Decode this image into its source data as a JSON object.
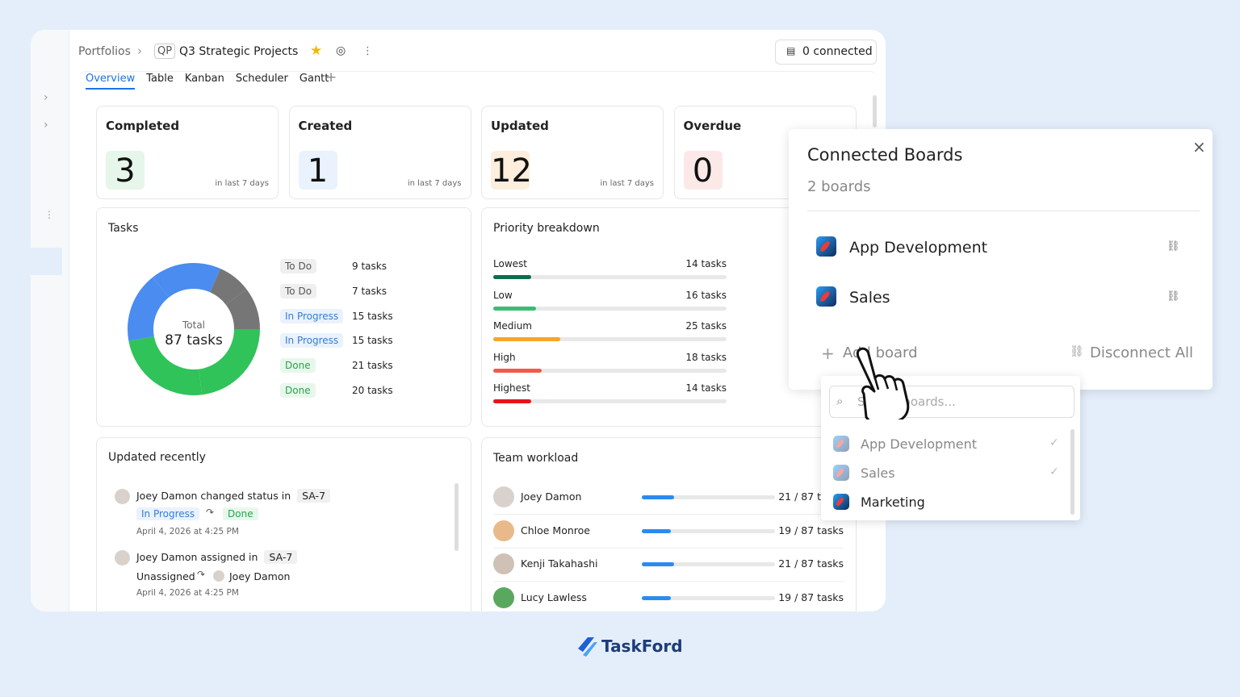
{
  "breadcrumb": {
    "root": "Portfolios",
    "badge": "QP",
    "project": "Q3 Strategic Projects"
  },
  "connected_button": "0 connected",
  "tabs": [
    "Overview",
    "Table",
    "Kanban",
    "Scheduler",
    "Gantt"
  ],
  "stats": [
    {
      "title": "Completed",
      "value": 3,
      "note": "in last 7 days"
    },
    {
      "title": "Created",
      "value": 1,
      "note": "in last 7 days"
    },
    {
      "title": "Updated",
      "value": 12,
      "note": "in last 7 days"
    },
    {
      "title": "Overdue",
      "value": 0
    }
  ],
  "tasks": {
    "title": "Tasks",
    "total_label": "Total",
    "total": "87 tasks",
    "statuses": [
      "To Do",
      "To Do",
      "In Progress",
      "In Progress",
      "Done",
      "Done"
    ],
    "values": [
      9,
      7,
      15,
      15,
      21,
      20
    ],
    "value_labels": [
      "9 tasks",
      "7 tasks",
      "15 tasks",
      "15 tasks",
      "21 tasks",
      "20 tasks"
    ],
    "colors": [
      "#767676",
      "#767676",
      "#4a8cf0",
      "#4a8cf0",
      "#2fc35a",
      "#2fc35a"
    ]
  },
  "priority": {
    "title": "Priority breakdown",
    "categories": [
      "Lowest",
      "Low",
      "Medium",
      "High",
      "Highest"
    ],
    "values": [
      14,
      16,
      25,
      18,
      14
    ],
    "value_labels": [
      "14 tasks",
      "16 tasks",
      "25 tasks",
      "18 tasks",
      "14 tasks"
    ],
    "colors": [
      "#0b6e4f",
      "#3dba74",
      "#f5a623",
      "#f15a4a",
      "#e8141b"
    ],
    "xlim": [
      0,
      87
    ]
  },
  "updated": {
    "title": "Updated recently",
    "entries": [
      {
        "user": "Joey Damon",
        "action": "changed status in",
        "ref": "SA-7",
        "from": "In Progress",
        "to": "Done",
        "time": "April 4, 2026 at 4:25 PM"
      },
      {
        "user": "Joey Damon",
        "action": "assigned in",
        "ref": "SA-7",
        "from": "Unassigned",
        "to": "Joey Damon",
        "time": "April 4, 2026 at 4:25 PM"
      }
    ]
  },
  "workload": {
    "title": "Team workload",
    "members": [
      "Joey Damon",
      "Chloe Monroe",
      "Kenji Takahashi",
      "Lucy Lawless"
    ],
    "values": [
      21,
      19,
      21,
      19
    ],
    "value_labels": [
      "21 / 87 tasks",
      "19 / 87 tasks",
      "21 / 87 tasks",
      "19 / 87 tasks"
    ],
    "xlim": [
      0,
      87
    ]
  },
  "panel": {
    "title": "Connected Boards",
    "count": "2 boards",
    "boards": [
      "App Development",
      "Sales"
    ],
    "add": "Add board",
    "disconnect": "Disconnect All"
  },
  "dropdown": {
    "placeholder": "Search boards...",
    "items": [
      "App Development",
      "Sales",
      "Marketing"
    ]
  },
  "brand": "TaskFord"
}
